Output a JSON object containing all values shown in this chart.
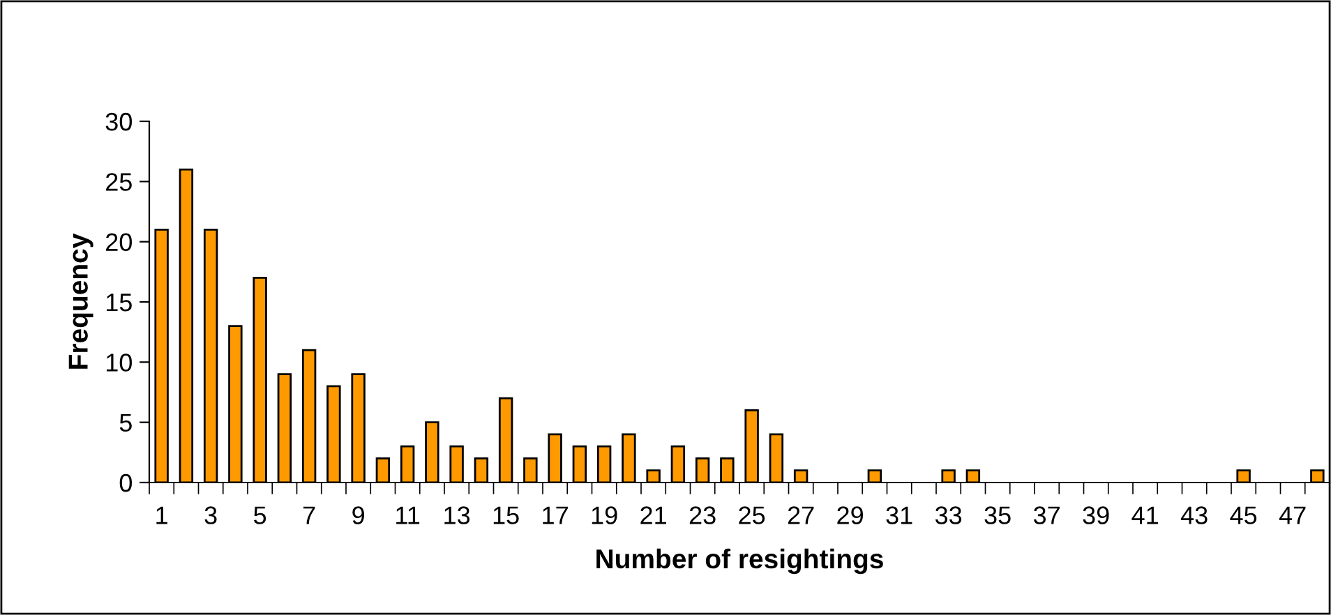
{
  "chart_data": {
    "type": "bar",
    "xlabel": "Number of resightings",
    "ylabel": "Frequency",
    "categories": [
      "1",
      null,
      "3",
      null,
      "5",
      null,
      "7",
      null,
      "9",
      null,
      "11",
      null,
      "13",
      null,
      "15",
      null,
      "17",
      null,
      "19",
      null,
      "21",
      null,
      "23",
      null,
      "25",
      null,
      "27",
      null,
      "29",
      null,
      "31",
      null,
      "33",
      null,
      "35",
      null,
      "37",
      null,
      "39",
      null,
      "41",
      null,
      "43",
      null,
      "45",
      null,
      "47",
      null
    ],
    "values": [
      21,
      26,
      21,
      13,
      17,
      9,
      11,
      8,
      9,
      2,
      3,
      5,
      3,
      2,
      7,
      2,
      4,
      3,
      3,
      4,
      1,
      3,
      2,
      2,
      6,
      4,
      1,
      0,
      0,
      1,
      0,
      0,
      1,
      1,
      0,
      0,
      0,
      0,
      0,
      0,
      0,
      0,
      0,
      0,
      1,
      0,
      0,
      1
    ],
    "color": "#ff9900",
    "ylim": [
      0,
      30
    ],
    "yticks": [
      0,
      5,
      10,
      15,
      20,
      25,
      30
    ],
    "grid": false,
    "legend": false
  }
}
